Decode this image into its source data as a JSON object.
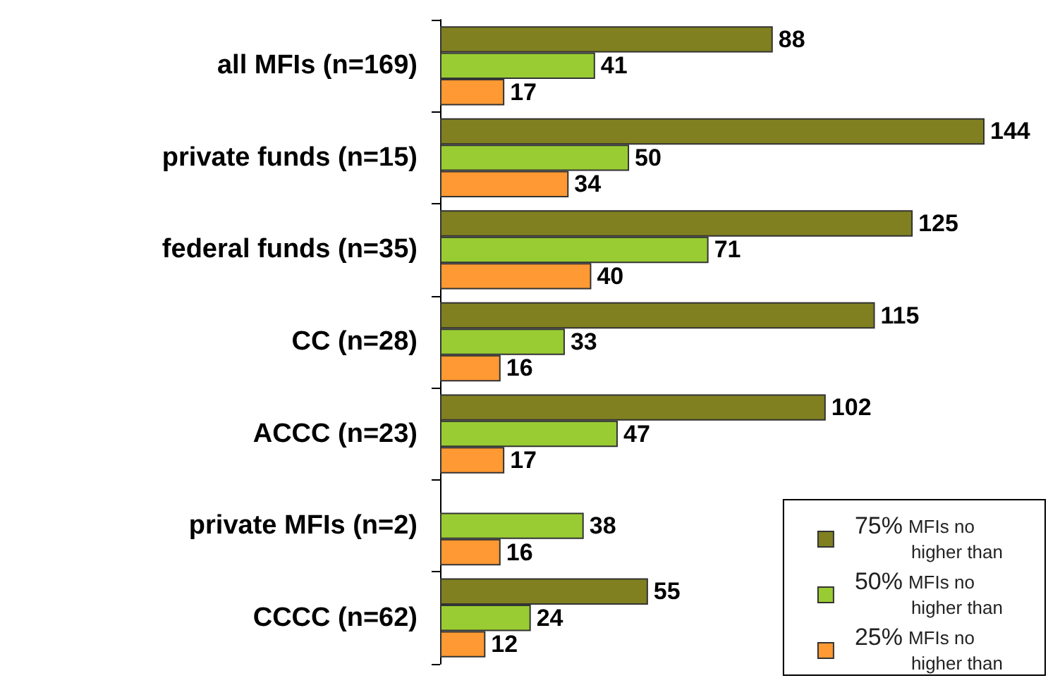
{
  "chart_data": {
    "type": "bar",
    "orientation": "horizontal",
    "data_labels": true,
    "legend": "bottom right",
    "grid": false,
    "categories": [
      "all MFIs (n=169)",
      "private funds (n=15)",
      "federal funds (n=35)",
      "CC (n=28)",
      "ACCC (n=23)",
      "private MFIs (n=2)",
      "CCCC (n=62)"
    ],
    "series": [
      {
        "name": "75% MFIs no higher than",
        "color": "#808020",
        "values": [
          88,
          144,
          125,
          115,
          102,
          null,
          55
        ]
      },
      {
        "name": "50% MFIs no higher than",
        "color": "#99cc33",
        "values": [
          41,
          50,
          71,
          33,
          47,
          38,
          24
        ]
      },
      {
        "name": "25% MFIs no higher than",
        "color": "#ff9933",
        "values": [
          17,
          34,
          40,
          16,
          17,
          16,
          12
        ]
      }
    ]
  }
}
